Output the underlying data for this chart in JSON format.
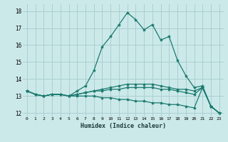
{
  "xlabel": "Humidex (Indice chaleur)",
  "bg_color": "#cce9ea",
  "grid_color": "#aacfcf",
  "line_color": "#1a7a6e",
  "xlim": [
    -0.5,
    23.5
  ],
  "ylim": [
    11.8,
    18.4
  ],
  "yticks": [
    12,
    13,
    14,
    15,
    16,
    17,
    18
  ],
  "xticks": [
    0,
    1,
    2,
    3,
    4,
    5,
    6,
    7,
    8,
    9,
    10,
    11,
    12,
    13,
    14,
    15,
    16,
    17,
    18,
    19,
    20,
    21,
    22,
    23
  ],
  "series": [
    [
      13.3,
      13.1,
      13.0,
      13.1,
      13.1,
      13.0,
      13.3,
      13.6,
      14.5,
      15.9,
      16.5,
      17.2,
      17.9,
      17.5,
      16.9,
      17.2,
      16.3,
      16.5,
      15.1,
      14.2,
      13.5,
      13.6,
      12.4,
      12.0
    ],
    [
      13.3,
      13.1,
      13.0,
      13.1,
      13.1,
      13.0,
      13.1,
      13.2,
      13.3,
      13.4,
      13.5,
      13.6,
      13.7,
      13.7,
      13.7,
      13.7,
      13.6,
      13.5,
      13.4,
      13.4,
      13.3,
      13.5,
      12.4,
      12.0
    ],
    [
      13.3,
      13.1,
      13.0,
      13.1,
      13.1,
      13.0,
      13.1,
      13.2,
      13.3,
      13.3,
      13.4,
      13.4,
      13.5,
      13.5,
      13.5,
      13.5,
      13.4,
      13.4,
      13.3,
      13.2,
      13.1,
      13.5,
      12.4,
      12.0
    ],
    [
      13.3,
      13.1,
      13.0,
      13.1,
      13.1,
      13.0,
      13.0,
      13.0,
      13.0,
      12.9,
      12.9,
      12.8,
      12.8,
      12.7,
      12.7,
      12.6,
      12.6,
      12.5,
      12.5,
      12.4,
      12.3,
      13.5,
      12.4,
      12.0
    ]
  ]
}
